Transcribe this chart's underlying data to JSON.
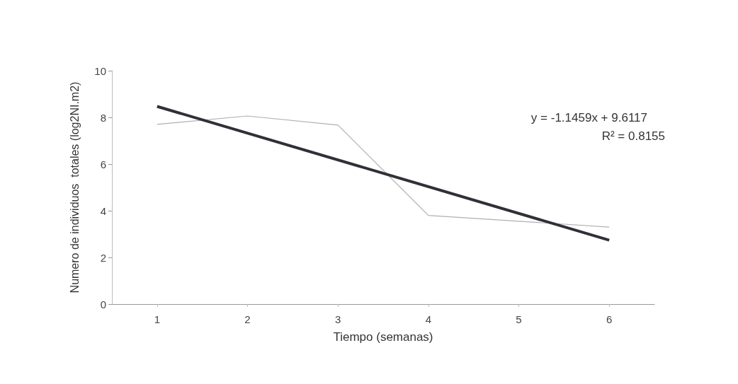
{
  "chart_data": {
    "type": "line",
    "xlabel": "Tiempo (semanas)",
    "ylabel": "Numero de individuos  totales (log2NI.m2)",
    "x": [
      1,
      2,
      3,
      4,
      5,
      6
    ],
    "series": [
      {
        "color": "#b0b0b0",
        "values": [
          7.7,
          8.06,
          7.67,
          3.8,
          3.55,
          3.3
        ]
      },
      {
        "color": "#303038",
        "x": [
          1,
          6
        ],
        "values": [
          8.47,
          2.74
        ]
      }
    ],
    "xlim": [
      0.5,
      6.5
    ],
    "xticks": [
      1,
      2,
      3,
      4,
      5,
      6
    ],
    "ylim": [
      0,
      10
    ],
    "yticks": [
      0,
      2,
      4,
      6,
      8,
      10
    ],
    "grid": false,
    "marker": "none",
    "line_style": "solid",
    "annotations": [
      "y = -1.1459x + 9.6117",
      "R² = 0.8155"
    ]
  }
}
